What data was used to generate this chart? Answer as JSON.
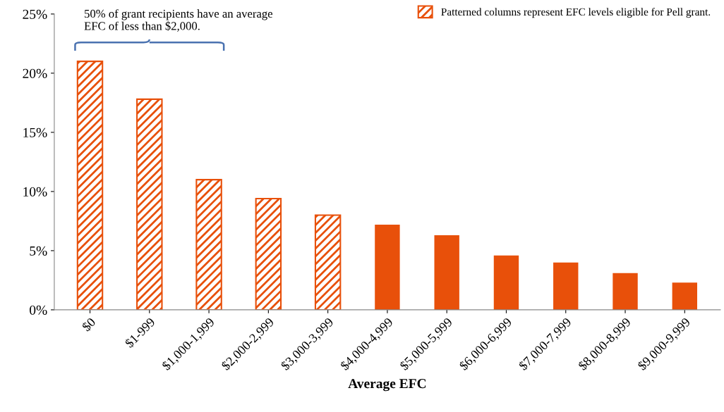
{
  "chart_data": {
    "type": "bar",
    "xlabel": "Average EFC",
    "categories": [
      "$0",
      "$1-999",
      "$1,000-1,999",
      "$2,000-2,999",
      "$3,000-3,999",
      "$4,000-4,999",
      "$5,000-5,999",
      "$6,000-6,999",
      "$7,000-7,999",
      "$8,000-8,999",
      "$9,000-9,999"
    ],
    "series": [
      {
        "name": "Patterned columns represent EFC levels eligible for Pell grant.",
        "color": "#e8500a",
        "values": [
          21.0,
          17.8,
          11.0,
          9.4,
          8.0,
          null,
          null,
          null,
          null,
          null,
          null
        ]
      },
      {
        "color": "#e8500a",
        "values": [
          null,
          null,
          null,
          null,
          null,
          7.2,
          6.3,
          4.6,
          4.0,
          3.1,
          2.3
        ]
      }
    ],
    "ylim": [
      0,
      25
    ],
    "yticks": [
      {
        "value": 0,
        "label": "0%"
      },
      {
        "value": 5,
        "label": "5%"
      },
      {
        "value": 10,
        "label": "10%"
      },
      {
        "value": 15,
        "label": "15%"
      },
      {
        "value": 20,
        "label": "20%"
      },
      {
        "value": 25,
        "label": "25%"
      }
    ],
    "annotations": [
      "50% of grant recipients have an average EFC of less than $2,000."
    ],
    "legend": "top right",
    "grid": false
  }
}
